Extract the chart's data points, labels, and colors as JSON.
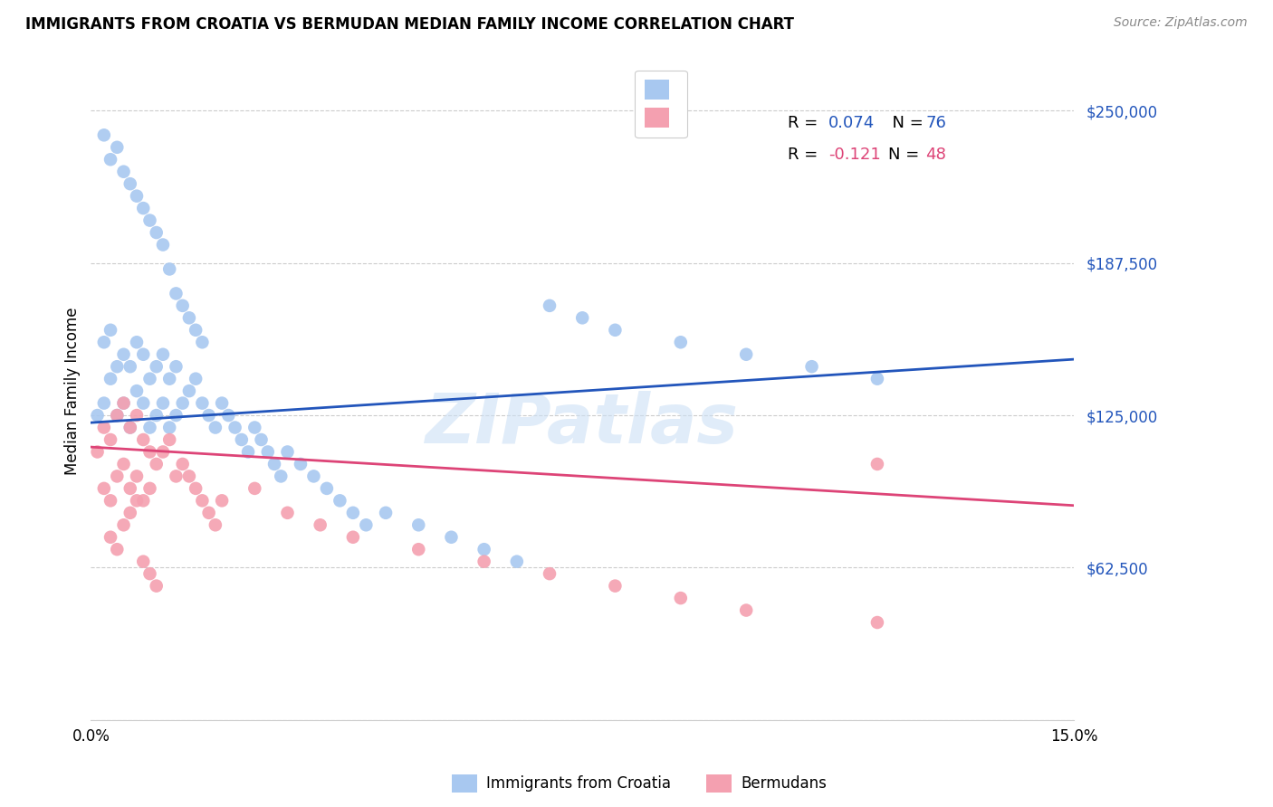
{
  "title": "IMMIGRANTS FROM CROATIA VS BERMUDAN MEDIAN FAMILY INCOME CORRELATION CHART",
  "source": "Source: ZipAtlas.com",
  "ylabel": "Median Family Income",
  "xlim": [
    0.0,
    0.15
  ],
  "ylim": [
    0,
    270000
  ],
  "yticks": [
    0,
    62500,
    125000,
    187500,
    250000
  ],
  "ytick_labels": [
    "",
    "$62,500",
    "$125,000",
    "$187,500",
    "$250,000"
  ],
  "scatter1_color": "#a8c8f0",
  "scatter2_color": "#f4a0b0",
  "line1_color": "#2255bb",
  "line2_color": "#dd4477",
  "blue_color": "#2255bb",
  "pink_color": "#dd4477",
  "legend_label1": "Immigrants from Croatia",
  "legend_label2": "Bermudans",
  "watermark": "ZIPatlas",
  "line1_y0": 122000,
  "line1_y1": 148000,
  "line2_y0": 112000,
  "line2_y1": 88000,
  "scatter1_x": [
    0.001,
    0.002,
    0.002,
    0.003,
    0.003,
    0.004,
    0.004,
    0.005,
    0.005,
    0.006,
    0.006,
    0.007,
    0.007,
    0.008,
    0.008,
    0.009,
    0.009,
    0.01,
    0.01,
    0.011,
    0.011,
    0.012,
    0.012,
    0.013,
    0.013,
    0.014,
    0.015,
    0.016,
    0.017,
    0.018,
    0.019,
    0.02,
    0.021,
    0.022,
    0.023,
    0.024,
    0.025,
    0.026,
    0.027,
    0.028,
    0.029,
    0.03,
    0.032,
    0.034,
    0.036,
    0.038,
    0.04,
    0.042,
    0.045,
    0.05,
    0.055,
    0.06,
    0.065,
    0.07,
    0.075,
    0.08,
    0.09,
    0.1,
    0.11,
    0.12,
    0.002,
    0.003,
    0.004,
    0.005,
    0.006,
    0.007,
    0.008,
    0.009,
    0.01,
    0.011,
    0.012,
    0.013,
    0.014,
    0.015,
    0.016,
    0.017
  ],
  "scatter1_y": [
    125000,
    155000,
    130000,
    160000,
    140000,
    145000,
    125000,
    150000,
    130000,
    145000,
    120000,
    155000,
    135000,
    150000,
    130000,
    140000,
    120000,
    145000,
    125000,
    150000,
    130000,
    140000,
    120000,
    145000,
    125000,
    130000,
    135000,
    140000,
    130000,
    125000,
    120000,
    130000,
    125000,
    120000,
    115000,
    110000,
    120000,
    115000,
    110000,
    105000,
    100000,
    110000,
    105000,
    100000,
    95000,
    90000,
    85000,
    80000,
    85000,
    80000,
    75000,
    70000,
    65000,
    170000,
    165000,
    160000,
    155000,
    150000,
    145000,
    140000,
    240000,
    230000,
    235000,
    225000,
    220000,
    215000,
    210000,
    205000,
    200000,
    195000,
    185000,
    175000,
    170000,
    165000,
    160000,
    155000
  ],
  "scatter2_x": [
    0.001,
    0.002,
    0.002,
    0.003,
    0.003,
    0.004,
    0.004,
    0.005,
    0.005,
    0.006,
    0.006,
    0.007,
    0.007,
    0.008,
    0.008,
    0.009,
    0.009,
    0.01,
    0.011,
    0.012,
    0.013,
    0.014,
    0.015,
    0.016,
    0.017,
    0.018,
    0.019,
    0.02,
    0.025,
    0.03,
    0.035,
    0.04,
    0.05,
    0.06,
    0.07,
    0.08,
    0.09,
    0.1,
    0.12,
    0.12,
    0.003,
    0.004,
    0.005,
    0.006,
    0.007,
    0.008,
    0.009,
    0.01
  ],
  "scatter2_y": [
    110000,
    120000,
    95000,
    115000,
    90000,
    125000,
    100000,
    130000,
    105000,
    120000,
    95000,
    125000,
    100000,
    115000,
    90000,
    110000,
    95000,
    105000,
    110000,
    115000,
    100000,
    105000,
    100000,
    95000,
    90000,
    85000,
    80000,
    90000,
    95000,
    85000,
    80000,
    75000,
    70000,
    65000,
    60000,
    55000,
    50000,
    45000,
    105000,
    40000,
    75000,
    70000,
    80000,
    85000,
    90000,
    65000,
    60000,
    55000
  ]
}
